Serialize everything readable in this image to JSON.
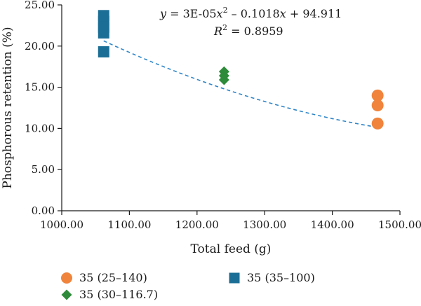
{
  "chart_data": {
    "type": "scatter",
    "xlabel": "Total feed (g)",
    "ylabel": "Phosphorous retention (%)",
    "xlim": [
      1000,
      1500
    ],
    "ylim": [
      0,
      25
    ],
    "x_ticks": [
      "1000.00",
      "1100.00",
      "1200.00",
      "1300.00",
      "1400.00",
      "1500.00"
    ],
    "y_ticks": [
      "0.00",
      "5.00",
      "10.00",
      "15.00",
      "20.00",
      "25.00"
    ],
    "grid": false,
    "legend_position": "bottom",
    "series": [
      {
        "name": "35 (25–140)",
        "marker": "circle",
        "color": "#f0843c",
        "points": [
          [
            1467,
            14.0
          ],
          [
            1467,
            12.8
          ],
          [
            1467,
            10.6
          ]
        ]
      },
      {
        "name": "35 (35–100)",
        "marker": "square",
        "color": "#1b6f96",
        "points": [
          [
            1062,
            23.7
          ],
          [
            1062,
            23.0
          ],
          [
            1062,
            22.3
          ],
          [
            1062,
            21.6
          ],
          [
            1062,
            19.3
          ]
        ]
      },
      {
        "name": "35 (30–116.7)",
        "marker": "diamond",
        "color": "#2e8b3a",
        "points": [
          [
            1240,
            16.9
          ],
          [
            1240,
            16.4
          ],
          [
            1240,
            15.9
          ]
        ]
      }
    ],
    "trendline": {
      "type": "polynomial",
      "style": "dashed",
      "color": "#2f86c8",
      "x_from": 1062,
      "x_to": 1467,
      "coefficients": {
        "a": 3e-05,
        "b": -0.1018,
        "c": 94.911
      },
      "equation_parts": {
        "y": "y",
        "mid1": " = 3E-05",
        "x1": "x",
        "sup": "2",
        "mid2": " – 0.1018",
        "x2": "x",
        "tail": " + 94.911"
      },
      "r2_parts": {
        "r": "R",
        "sup": "2",
        "tail": " = 0.8959"
      }
    },
    "legend_items": [
      {
        "label": "35 (25–140)",
        "marker": "circle",
        "color": "#f0843c"
      },
      {
        "label": "35 (35–100)",
        "marker": "square",
        "color": "#1b6f96"
      },
      {
        "label": "35 (30–116.7)",
        "marker": "diamond",
        "color": "#2e8b3a"
      }
    ]
  }
}
